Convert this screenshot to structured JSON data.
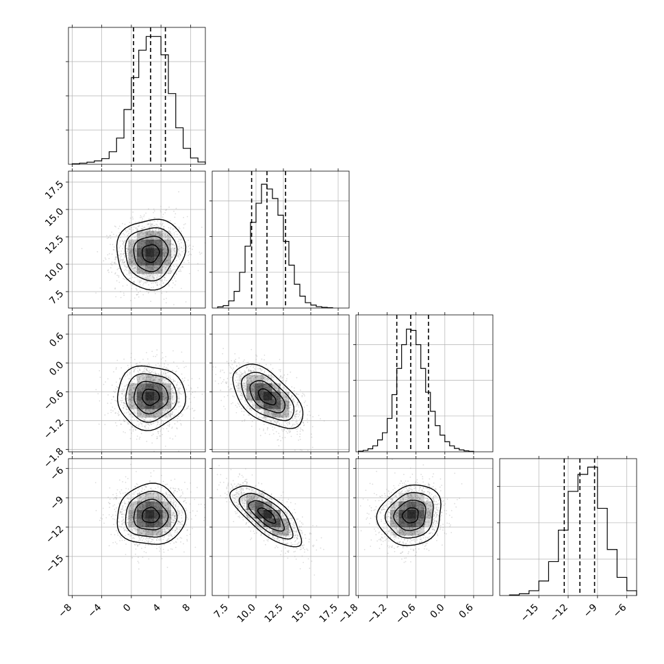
{
  "chart_data": {
    "type": "corner",
    "title": "",
    "grid": true,
    "parameters": [
      {
        "index": 0,
        "quantiles": [
          0.3,
          2.6,
          4.6
        ],
        "range": [
          -8.5,
          10
        ],
        "ticks": [
          -8,
          -4,
          0,
          4,
          8
        ],
        "tick_labels": [
          "−8",
          "−4",
          "0",
          "4",
          "8"
        ],
        "hist": {
          "edges": [
            -8,
            -7,
            -6,
            -5,
            -4,
            -3,
            -2,
            -1,
            0,
            1,
            2,
            3,
            4,
            5,
            6,
            7,
            8,
            9,
            10
          ],
          "counts": [
            5,
            10,
            18,
            30,
            50,
            110,
            230,
            480,
            760,
            1000,
            1120,
            1120,
            960,
            620,
            320,
            140,
            55,
            20
          ]
        },
        "hist_ymax": 1200
      },
      {
        "index": 1,
        "quantiles": [
          9.6,
          11.0,
          12.7
        ],
        "range": [
          6.0,
          18.5
        ],
        "ticks": [
          7.5,
          10.0,
          12.5,
          15.0,
          17.5
        ],
        "tick_labels": [
          "7.5",
          "10.0",
          "12.5",
          "15.0",
          "17.5"
        ],
        "hist": {
          "edges": [
            6.5,
            7.0,
            7.5,
            8.0,
            8.5,
            9.0,
            9.5,
            10.0,
            10.5,
            11.0,
            11.5,
            12.0,
            12.5,
            13.0,
            13.5,
            14.0,
            14.5,
            15.0,
            15.5,
            16.0,
            16.5,
            17.0
          ],
          "counts": [
            10,
            20,
            60,
            140,
            300,
            520,
            720,
            880,
            1040,
            1000,
            920,
            780,
            560,
            360,
            200,
            100,
            45,
            25,
            12,
            6,
            3
          ]
        },
        "hist_ymax": 1150
      },
      {
        "index": 2,
        "quantiles": [
          -1.0,
          -0.71,
          -0.34
        ],
        "range": [
          -1.85,
          1.0
        ],
        "ticks": [
          -1.8,
          -1.2,
          -0.6,
          0.0,
          0.6
        ],
        "tick_labels": [
          "−1.8",
          "−1.2",
          "−0.6",
          "0.0",
          "0.6"
        ],
        "hist": {
          "edges": [
            -1.8,
            -1.7,
            -1.6,
            -1.5,
            -1.4,
            -1.3,
            -1.2,
            -1.1,
            -1.0,
            -0.9,
            -0.8,
            -0.7,
            -0.6,
            -0.5,
            -0.4,
            -0.3,
            -0.2,
            -0.1,
            0.0,
            0.1,
            0.2,
            0.3,
            0.4,
            0.5,
            0.6
          ],
          "counts": [
            5,
            12,
            25,
            50,
            100,
            160,
            280,
            480,
            700,
            900,
            1030,
            1020,
            900,
            700,
            500,
            340,
            220,
            140,
            85,
            50,
            28,
            16,
            8,
            4
          ]
        },
        "hist_ymax": 1150
      },
      {
        "index": 3,
        "quantiles": [
          -12.4,
          -10.8,
          -9.3
        ],
        "range": [
          -19.0,
          -5.0
        ],
        "ticks": [
          -15,
          -12,
          -9,
          -6
        ],
        "tick_labels": [
          "−15",
          "−12",
          "−9",
          "−6"
        ],
        "hist": {
          "edges": [
            -18,
            -17,
            -16,
            -15,
            -14,
            -13,
            -12,
            -11,
            -10,
            -9,
            -8,
            -7,
            -6,
            -5
          ],
          "counts": [
            5,
            15,
            40,
            120,
            280,
            540,
            860,
            1000,
            1060,
            720,
            380,
            150,
            40
          ]
        },
        "hist_ymax": 1130
      }
    ],
    "pairs": [
      {
        "x": 0,
        "y": 1,
        "center": [
          2.6,
          11.0
        ],
        "sigma": [
          2.3,
          1.6
        ],
        "rho": 0.05
      },
      {
        "x": 0,
        "y": 2,
        "center": [
          2.6,
          -0.71
        ],
        "sigma": [
          2.3,
          0.33
        ],
        "rho": 0.0
      },
      {
        "x": 1,
        "y": 2,
        "center": [
          11.0,
          -0.71
        ],
        "sigma": [
          1.6,
          0.33
        ],
        "rho": -0.55
      },
      {
        "x": 0,
        "y": 3,
        "center": [
          2.6,
          -10.8
        ],
        "sigma": [
          2.3,
          1.55
        ],
        "rho": 0.0
      },
      {
        "x": 1,
        "y": 3,
        "center": [
          11.0,
          -10.8
        ],
        "sigma": [
          1.6,
          1.55
        ],
        "rho": -0.72
      },
      {
        "x": 2,
        "y": 3,
        "center": [
          -0.71,
          -10.8
        ],
        "sigma": [
          0.33,
          1.55
        ],
        "rho": 0.12
      }
    ],
    "contour_levels_sigma": [
      0.5,
      1.0,
      1.5,
      2.0
    ],
    "colors": {
      "line": "#000000",
      "grid": "#b0b0b0",
      "points": "#9a9a9a",
      "density": "#000000"
    }
  }
}
